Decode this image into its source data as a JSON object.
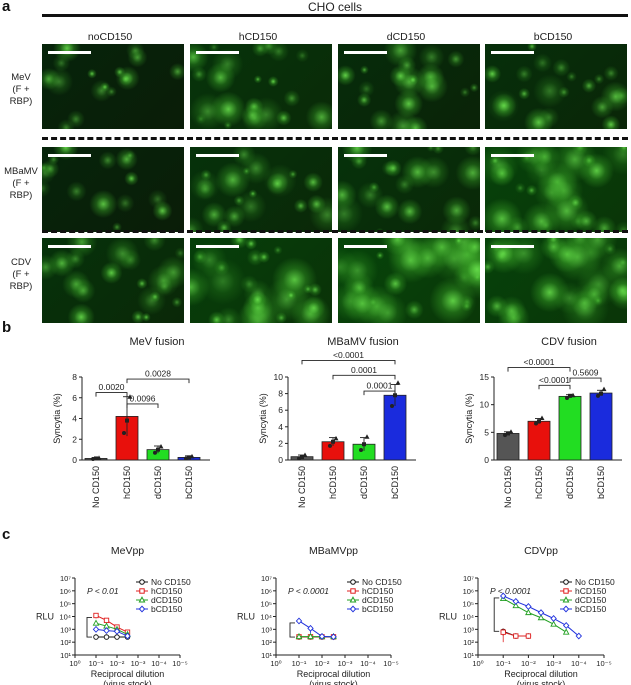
{
  "panel_a": {
    "letter": "a",
    "header": "CHO cells",
    "columns": [
      "noCD150",
      "hCD150",
      "dCD150",
      "bCD150"
    ],
    "rows": [
      {
        "line1": "MeV",
        "line2": "(F + RBP)",
        "intensity": [
          0.25,
          0.55,
          0.4,
          0.45
        ]
      },
      {
        "line1": "MBaMV",
        "line2": "(F + RBP)",
        "intensity": [
          0.25,
          0.5,
          0.5,
          0.8
        ]
      },
      {
        "line1": "CDV",
        "line2": "(F + RBP)",
        "intensity": [
          0.5,
          0.75,
          0.85,
          0.8
        ]
      }
    ]
  },
  "panel_b": {
    "letter": "b",
    "chart_data": [
      {
        "type": "bar",
        "title": "MeV fusion",
        "ylabel": "Syncytia (%)",
        "categories": [
          "No CD150",
          "hCD150",
          "dCD150",
          "bCD150"
        ],
        "values": [
          0.15,
          4.2,
          1.0,
          0.25
        ],
        "errors": [
          0.08,
          1.9,
          0.35,
          0.15
        ],
        "points": [
          [
            0.1,
            0.15,
            0.2
          ],
          [
            2.6,
            3.8,
            6.1
          ],
          [
            0.7,
            1.0,
            1.3
          ],
          [
            0.15,
            0.25,
            0.35
          ]
        ],
        "ylim": [
          0,
          8
        ],
        "yticks": [
          0,
          2,
          4,
          6,
          8
        ],
        "brackets": [
          {
            "from": 0,
            "to": 1,
            "label": "0.0020",
            "level": 6.5
          },
          {
            "from": 1,
            "to": 2,
            "label": "0.0096",
            "level": 5.4
          },
          {
            "from": 1,
            "to": 3,
            "label": "0.0028",
            "level": 7.8
          }
        ]
      },
      {
        "type": "bar",
        "title": "MBaMV fusion",
        "ylabel": "Syncytia (%)",
        "categories": [
          "No CD150",
          "hCD150",
          "dCD150",
          "bCD150"
        ],
        "values": [
          0.4,
          2.2,
          1.9,
          7.8
        ],
        "errors": [
          0.2,
          0.5,
          0.8,
          1.3
        ],
        "points": [
          [
            0.2,
            0.35,
            0.6
          ],
          [
            1.7,
            2.2,
            2.6
          ],
          [
            1.2,
            1.9,
            2.8
          ],
          [
            6.5,
            7.8,
            9.3
          ]
        ],
        "ylim": [
          0,
          10
        ],
        "yticks": [
          0,
          2,
          4,
          6,
          8,
          10
        ],
        "brackets": [
          {
            "from": 2,
            "to": 3,
            "label": "0.0001",
            "level": 8.3
          },
          {
            "from": 1,
            "to": 3,
            "label": "0.0001",
            "level": 10.2
          },
          {
            "from": 0,
            "to": 3,
            "label": "<0.0001",
            "level": 12.0
          }
        ]
      },
      {
        "type": "bar",
        "title": "CDV fusion",
        "ylabel": "Syncytia (%)",
        "categories": [
          "No CD150",
          "hCD150",
          "dCD150",
          "bCD150"
        ],
        "values": [
          4.8,
          7.0,
          11.5,
          12.1
        ],
        "errors": [
          0.3,
          0.5,
          0.3,
          0.5
        ],
        "points": [
          [
            4.5,
            4.8,
            5.1
          ],
          [
            6.6,
            7.0,
            7.6
          ],
          [
            11.2,
            11.6,
            11.7
          ],
          [
            11.6,
            12.0,
            12.8
          ]
        ],
        "ylim": [
          0,
          15
        ],
        "yticks": [
          0,
          5,
          10,
          15
        ],
        "brackets": [
          {
            "from": 1,
            "to": 2,
            "label": "<0.0001",
            "level": 13.5
          },
          {
            "from": 2,
            "to": 3,
            "label": "0.5609",
            "level": 14.8
          },
          {
            "from": 0,
            "to": 2,
            "label": "<0.0001",
            "level": 16.7
          }
        ]
      }
    ]
  },
  "panel_c": {
    "letter": "c",
    "chart_data": [
      {
        "type": "line",
        "title": "MeVpp",
        "xlabel_line1": "Reciprocal dilution",
        "xlabel_line2": "(virus stock)",
        "ylabel": "RLU",
        "xscale": "log-reversed",
        "yscale": "log",
        "xlim": [
          1,
          1e-05
        ],
        "ylim": [
          10,
          10000000
        ],
        "xticks": [
          "10⁰",
          "10⁻¹",
          "10⁻²",
          "10⁻³",
          "10⁻⁴",
          "10⁻⁵"
        ],
        "yticks": [
          "10¹",
          "10²",
          "10³",
          "10⁴",
          "10⁵",
          "10⁶",
          "10⁷"
        ],
        "pvalue": "P < 0.01",
        "legend_position": "top-right",
        "series": [
          {
            "name": "No CD150",
            "color": "#111111",
            "marker": "circle",
            "x": [
              0.1,
              0.0316,
              0.01,
              0.00316
            ],
            "y": [
              250,
              250,
              250,
              250
            ],
            "err": [
              30,
              30,
              30,
              30
            ]
          },
          {
            "name": "hCD150",
            "color": "#e02020",
            "marker": "square",
            "x": [
              0.1,
              0.0316,
              0.01,
              0.00316
            ],
            "y": [
              12000,
              5000,
              1500,
              600
            ],
            "err": [
              5000,
              1500,
              500,
              200
            ]
          },
          {
            "name": "dCD150",
            "color": "#22a022",
            "marker": "triangle",
            "x": [
              0.1,
              0.0316,
              0.01,
              0.00316
            ],
            "y": [
              3000,
              1800,
              1000,
              400
            ],
            "err": [
              500,
              300,
              200,
              100
            ]
          },
          {
            "name": "bCD150",
            "color": "#2233dd",
            "marker": "diamond",
            "x": [
              0.1,
              0.0316,
              0.01,
              0.00316
            ],
            "y": [
              1000,
              800,
              700,
              300
            ],
            "err": [
              200,
              150,
              150,
              50
            ]
          }
        ]
      },
      {
        "type": "line",
        "title": "MBaMVpp",
        "xlabel_line1": "Reciprocal dilution",
        "xlabel_line2": "(virus stock)",
        "ylabel": "RLU",
        "xscale": "log-reversed",
        "yscale": "log",
        "xlim": [
          1,
          1e-05
        ],
        "ylim": [
          10,
          10000000
        ],
        "xticks": [
          "10⁰",
          "10⁻¹",
          "10⁻²",
          "10⁻³",
          "10⁻⁴",
          "10⁻⁵"
        ],
        "yticks": [
          "10¹",
          "10²",
          "10³",
          "10⁴",
          "10⁵",
          "10⁶",
          "10⁷"
        ],
        "pvalue": "P < 0.0001",
        "legend_position": "top-right",
        "series": [
          {
            "name": "No CD150",
            "color": "#111111",
            "marker": "circle",
            "x": [
              0.1,
              0.0316,
              0.01,
              0.00316
            ],
            "y": [
              250,
              250,
              250,
              250
            ],
            "err": [
              30,
              30,
              30,
              30
            ]
          },
          {
            "name": "hCD150",
            "color": "#e02020",
            "marker": "square",
            "x": [
              0.1,
              0.0316,
              0.01,
              0.00316
            ],
            "y": [
              260,
              260,
              260,
              260
            ],
            "err": [
              30,
              30,
              30,
              30
            ]
          },
          {
            "name": "dCD150",
            "color": "#22a022",
            "marker": "triangle",
            "x": [
              0.1,
              0.0316,
              0.01,
              0.00316
            ],
            "y": [
              270,
              270,
              270,
              270
            ],
            "err": [
              30,
              30,
              30,
              30
            ]
          },
          {
            "name": "bCD150",
            "color": "#2233dd",
            "marker": "diamond",
            "x": [
              0.1,
              0.0316,
              0.01,
              0.00316
            ],
            "y": [
              4500,
              1200,
              280,
              260
            ],
            "err": [
              1500,
              700,
              50,
              30
            ]
          }
        ]
      },
      {
        "type": "line",
        "title": "CDVpp",
        "xlabel_line1": "Reciprocal dilution",
        "xlabel_line2": "(virus stock)",
        "ylabel": "RLU",
        "xscale": "log-reversed",
        "yscale": "log",
        "xlim": [
          1,
          1e-05
        ],
        "ylim": [
          10,
          10000000
        ],
        "xticks": [
          "10⁰",
          "10⁻¹",
          "10⁻²",
          "10⁻³",
          "10⁻⁴",
          "10⁻⁵"
        ],
        "yticks": [
          "10¹",
          "10²",
          "10³",
          "10⁴",
          "10⁵",
          "10⁶",
          "10⁷"
        ],
        "pvalue": "P < 0.0001",
        "legend_position": "top-right",
        "series": [
          {
            "name": "No CD150",
            "color": "#111111",
            "marker": "circle",
            "x": [
              0.1,
              0.0316,
              0.01
            ],
            "y": [
              700,
              300,
              300
            ],
            "err": [
              400,
              50,
              50
            ]
          },
          {
            "name": "hCD150",
            "color": "#e02020",
            "marker": "square",
            "x": [
              0.1,
              0.0316,
              0.01
            ],
            "y": [
              600,
              300,
              300
            ],
            "err": [
              500,
              50,
              50
            ]
          },
          {
            "name": "dCD150",
            "color": "#22a022",
            "marker": "triangle",
            "x": [
              0.1,
              0.0316,
              0.01,
              0.00316,
              0.001,
              0.000316
            ],
            "y": [
              250000,
              70000,
              20000,
              8000,
              2500,
              600
            ],
            "err": [
              30000,
              10000,
              3000,
              1000,
              400,
              100
            ]
          },
          {
            "name": "bCD150",
            "color": "#2233dd",
            "marker": "diamond",
            "x": [
              0.1,
              0.0316,
              0.01,
              0.00316,
              0.001,
              0.000316,
              0.0001
            ],
            "y": [
              400000,
              150000,
              60000,
              20000,
              7000,
              2000,
              300
            ],
            "err": [
              40000,
              15000,
              6000,
              2000,
              700,
              200,
              40
            ]
          }
        ]
      }
    ]
  }
}
